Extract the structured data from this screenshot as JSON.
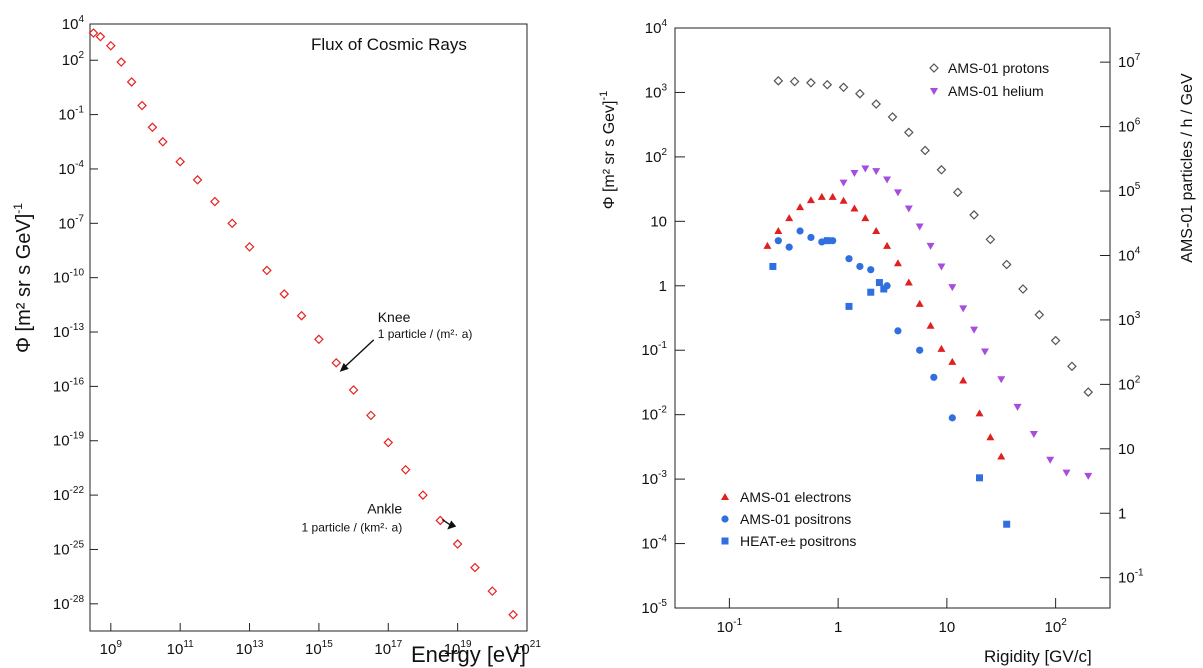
{
  "chart_data": [
    {
      "type": "scatter",
      "title": "Flux of Cosmic Rays",
      "xlabel": "Energy  [eV]",
      "ylabel_main": "Φ [m² sr s GeV]",
      "ylabel_exp": "-1",
      "xscale": "log",
      "yscale": "log",
      "xlim_exp": [
        8.4,
        21
      ],
      "ylim_exp": [
        -29.5,
        4
      ],
      "x_ticks": [
        {
          "exp": 9,
          "base": "10",
          "sup": "9"
        },
        {
          "exp": 11,
          "base": "10",
          "sup": "11"
        },
        {
          "exp": 13,
          "base": "10",
          "sup": "13"
        },
        {
          "exp": 15,
          "base": "10",
          "sup": "15"
        },
        {
          "exp": 17,
          "base": "10",
          "sup": "17"
        },
        {
          "exp": 19,
          "base": "10",
          "sup": "19"
        },
        {
          "exp": 21,
          "base": "10",
          "sup": "21"
        }
      ],
      "y_ticks": [
        {
          "exp": 4,
          "base": "10",
          "sup": "4"
        },
        {
          "exp": 2,
          "base": "10",
          "sup": "2"
        },
        {
          "exp": -1,
          "base": "10",
          "sup": "-1"
        },
        {
          "exp": -4,
          "base": "10",
          "sup": "-4"
        },
        {
          "exp": -7,
          "base": "10",
          "sup": "-7"
        },
        {
          "exp": -10,
          "base": "10",
          "sup": "-10"
        },
        {
          "exp": -13,
          "base": "10",
          "sup": "-13"
        },
        {
          "exp": -16,
          "base": "10",
          "sup": "-16"
        },
        {
          "exp": -19,
          "base": "10",
          "sup": "-19"
        },
        {
          "exp": -22,
          "base": "10",
          "sup": "-22"
        },
        {
          "exp": -25,
          "base": "10",
          "sup": "-25"
        },
        {
          "exp": -28,
          "base": "10",
          "sup": "-28"
        }
      ],
      "series": [
        {
          "color": "#e8211f",
          "marker": "open-diamond",
          "points_log10": [
            [
              8.5,
              3.5
            ],
            [
              8.7,
              3.3
            ],
            [
              9.0,
              2.8
            ],
            [
              9.3,
              1.9
            ],
            [
              9.6,
              0.8
            ],
            [
              9.9,
              -0.5
            ],
            [
              10.2,
              -1.7
            ],
            [
              10.5,
              -2.5
            ],
            [
              11.0,
              -3.6
            ],
            [
              11.5,
              -4.6
            ],
            [
              12.0,
              -5.8
            ],
            [
              12.5,
              -7.0
            ],
            [
              13.0,
              -8.3
            ],
            [
              13.5,
              -9.6
            ],
            [
              14.0,
              -10.9
            ],
            [
              14.5,
              -12.1
            ],
            [
              15.0,
              -13.4
            ],
            [
              15.5,
              -14.7
            ],
            [
              16.0,
              -16.2
            ],
            [
              16.5,
              -17.6
            ],
            [
              17.0,
              -19.1
            ],
            [
              17.5,
              -20.6
            ],
            [
              18.0,
              -22.0
            ],
            [
              18.5,
              -23.4
            ],
            [
              19.0,
              -24.7
            ],
            [
              19.5,
              -26.0
            ],
            [
              20.0,
              -27.3
            ],
            [
              20.6,
              -28.6
            ]
          ]
        }
      ],
      "annotations": [
        {
          "title": "Knee",
          "sub": "1 particle / (m²· a)",
          "x_exp": 15.6,
          "y_exp": -15.2
        },
        {
          "title": "Ankle",
          "sub": "1 particle / (km²· a)",
          "x_exp": 18.7,
          "y_exp": -23.9
        }
      ]
    },
    {
      "type": "scatter",
      "xlabel": "Rigidity [GV/c]",
      "ylabel_main": "Φ [m² sr s Gev]",
      "ylabel_exp": "-1",
      "ylabel_right": "AMS-01 particles / h / GeV",
      "xscale": "log",
      "yscale": "log",
      "xlim_exp": [
        -1.5,
        2.5
      ],
      "ylim_exp": [
        -5,
        4
      ],
      "x_ticks": [
        {
          "exp": -1,
          "base": "10",
          "sup": "-1"
        },
        {
          "exp": 0,
          "base": "1",
          "sup": ""
        },
        {
          "exp": 1,
          "base": "10",
          "sup": ""
        },
        {
          "exp": 2,
          "base": "10",
          "sup": "2"
        }
      ],
      "y_ticks": [
        {
          "exp": 4,
          "base": "10",
          "sup": "4"
        },
        {
          "exp": 3,
          "base": "10",
          "sup": "3"
        },
        {
          "exp": 2,
          "base": "10",
          "sup": "2"
        },
        {
          "exp": 1,
          "base": "10",
          "sup": ""
        },
        {
          "exp": 0,
          "base": "1",
          "sup": ""
        },
        {
          "exp": -1,
          "base": "10",
          "sup": "-1"
        },
        {
          "exp": -2,
          "base": "10",
          "sup": "-2"
        },
        {
          "exp": -3,
          "base": "10",
          "sup": "-3"
        },
        {
          "exp": -4,
          "base": "10",
          "sup": "-4"
        },
        {
          "exp": -5,
          "base": "10",
          "sup": "-5"
        }
      ],
      "y_ticks_right": [
        {
          "left_exp": 3.47,
          "base": "10",
          "sup": "7"
        },
        {
          "left_exp": 2.47,
          "base": "10",
          "sup": "6"
        },
        {
          "left_exp": 1.47,
          "base": "10",
          "sup": "5"
        },
        {
          "left_exp": 0.47,
          "base": "10",
          "sup": "4"
        },
        {
          "left_exp": -0.53,
          "base": "10",
          "sup": "3"
        },
        {
          "left_exp": -1.53,
          "base": "10",
          "sup": "2"
        },
        {
          "left_exp": -2.53,
          "base": "10",
          "sup": ""
        },
        {
          "left_exp": -3.53,
          "base": "1",
          "sup": ""
        },
        {
          "left_exp": -4.53,
          "base": "10",
          "sup": "-1"
        }
      ],
      "series": [
        {
          "name": "AMS-01 protons",
          "color": "#555555",
          "marker": "open-diamond",
          "points_log10": [
            [
              -0.55,
              3.18
            ],
            [
              -0.4,
              3.17
            ],
            [
              -0.25,
              3.15
            ],
            [
              -0.1,
              3.12
            ],
            [
              0.05,
              3.08
            ],
            [
              0.2,
              2.98
            ],
            [
              0.35,
              2.82
            ],
            [
              0.5,
              2.62
            ],
            [
              0.65,
              2.38
            ],
            [
              0.8,
              2.1
            ],
            [
              0.95,
              1.8
            ],
            [
              1.1,
              1.45
            ],
            [
              1.25,
              1.1
            ],
            [
              1.4,
              0.72
            ],
            [
              1.55,
              0.33
            ],
            [
              1.7,
              -0.05
            ],
            [
              1.85,
              -0.45
            ],
            [
              2.0,
              -0.85
            ],
            [
              2.15,
              -1.25
            ],
            [
              2.3,
              -1.65
            ]
          ]
        },
        {
          "name": "AMS-01 helium",
          "color": "#a64de0",
          "marker": "down-triangle",
          "points_log10": [
            [
              0.05,
              1.6
            ],
            [
              0.15,
              1.75
            ],
            [
              0.25,
              1.82
            ],
            [
              0.35,
              1.78
            ],
            [
              0.45,
              1.65
            ],
            [
              0.55,
              1.45
            ],
            [
              0.65,
              1.2
            ],
            [
              0.75,
              0.92
            ],
            [
              0.85,
              0.62
            ],
            [
              0.95,
              0.3
            ],
            [
              1.05,
              -0.02
            ],
            [
              1.15,
              -0.35
            ],
            [
              1.25,
              -0.68
            ],
            [
              1.35,
              -1.02
            ],
            [
              1.5,
              -1.45
            ],
            [
              1.65,
              -1.88
            ],
            [
              1.8,
              -2.3
            ],
            [
              1.95,
              -2.7
            ],
            [
              2.1,
              -2.9
            ],
            [
              2.3,
              -2.95
            ]
          ]
        },
        {
          "name": "AMS-01 electrons",
          "color": "#e02020",
          "marker": "up-triangle",
          "points_log10": [
            [
              -0.65,
              0.62
            ],
            [
              -0.55,
              0.85
            ],
            [
              -0.45,
              1.05
            ],
            [
              -0.35,
              1.22
            ],
            [
              -0.25,
              1.33
            ],
            [
              -0.15,
              1.38
            ],
            [
              -0.05,
              1.38
            ],
            [
              0.05,
              1.32
            ],
            [
              0.15,
              1.2
            ],
            [
              0.25,
              1.05
            ],
            [
              0.35,
              0.85
            ],
            [
              0.45,
              0.62
            ],
            [
              0.55,
              0.35
            ],
            [
              0.65,
              0.05
            ],
            [
              0.75,
              -0.28
            ],
            [
              0.85,
              -0.62
            ],
            [
              0.95,
              -0.98
            ],
            [
              1.05,
              -1.18
            ],
            [
              1.15,
              -1.47
            ],
            [
              1.3,
              -1.98
            ],
            [
              1.4,
              -2.35
            ],
            [
              1.5,
              -2.65
            ]
          ]
        },
        {
          "name": "AMS-01 positrons",
          "color": "#2f6fe0",
          "marker": "circle",
          "points_log10": [
            [
              -0.55,
              0.7
            ],
            [
              -0.45,
              0.6
            ],
            [
              -0.35,
              0.85
            ],
            [
              -0.25,
              0.75
            ],
            [
              -0.15,
              0.68
            ],
            [
              -0.05,
              0.7
            ],
            [
              0.1,
              0.42
            ],
            [
              0.2,
              0.3
            ],
            [
              0.3,
              0.25
            ],
            [
              0.45,
              0.0
            ],
            [
              0.55,
              -0.7
            ],
            [
              0.75,
              -1.0
            ],
            [
              0.88,
              -1.42
            ],
            [
              1.05,
              -2.05
            ]
          ]
        },
        {
          "name": "HEAT-e± positrons",
          "color": "#2f6fe0",
          "marker": "square",
          "points_log10": [
            [
              -0.6,
              0.3
            ],
            [
              -0.1,
              0.7
            ],
            [
              0.1,
              -0.32
            ],
            [
              0.3,
              -0.1
            ],
            [
              0.38,
              0.05
            ],
            [
              0.42,
              -0.05
            ],
            [
              1.3,
              -2.98
            ],
            [
              1.55,
              -3.7
            ]
          ]
        }
      ],
      "legend": {
        "top_right": [
          "AMS-01 protons",
          "AMS-01 helium"
        ],
        "bottom_left": [
          "AMS-01 electrons",
          "AMS-01 positrons",
          "HEAT-e± positrons"
        ]
      }
    }
  ]
}
